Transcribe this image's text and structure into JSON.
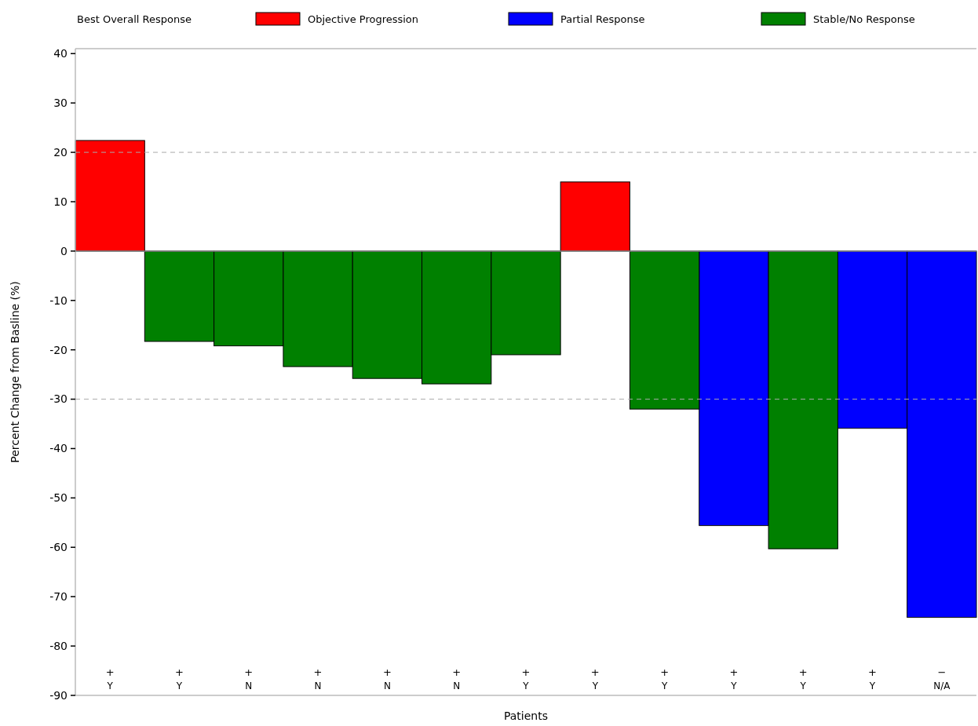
{
  "chart_data": {
    "type": "bar",
    "stacked": true,
    "xlabel": "Patients",
    "ylabel": "Percent Change from Basline (%)",
    "legend_title": "Best Overall Response",
    "legend": "top",
    "categories": [
      "Y",
      "Y",
      "N",
      "N",
      "N",
      "N",
      "Y",
      "Y",
      "Y",
      "Y",
      "Y",
      "Y",
      "N/A"
    ],
    "series": [
      {
        "name": "Objective Progression",
        "color": "#ff0000",
        "values": [
          22.4,
          null,
          null,
          null,
          null,
          null,
          null,
          14.0,
          null,
          null,
          null,
          null,
          null
        ]
      },
      {
        "name": "Partial Response",
        "color": "#0000ff",
        "values": [
          null,
          null,
          null,
          null,
          null,
          null,
          null,
          null,
          null,
          -55.6,
          null,
          -35.9,
          -74.2
        ]
      },
      {
        "name": "Stable/No Response",
        "color": "#008000",
        "values": [
          null,
          -18.3,
          -19.2,
          -23.4,
          -25.8,
          -26.9,
          -21.0,
          null,
          -32.0,
          null,
          -60.3,
          null,
          null
        ]
      }
    ],
    "ylim": [
      -90,
      41
    ],
    "yticks": [
      -90,
      -80,
      -70,
      -60,
      -50,
      -40,
      -30,
      -20,
      -10,
      0,
      10,
      20,
      30,
      40
    ],
    "ref_lines": [
      {
        "axis": "y",
        "value": 20,
        "line_style": "dashed",
        "color": "#aaaaaa"
      },
      {
        "axis": "y",
        "value": -30,
        "line_style": "dashed",
        "color": "#aaaaaa"
      }
    ],
    "annotations": [
      "+",
      "+",
      "+",
      "+",
      "+",
      "+",
      "+",
      "+",
      "+",
      "+",
      "+",
      "+",
      "−"
    ]
  }
}
